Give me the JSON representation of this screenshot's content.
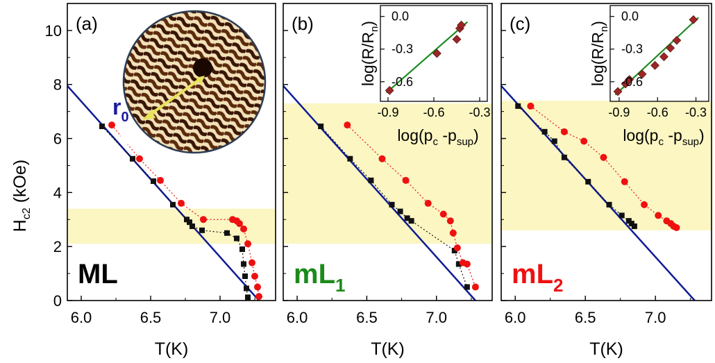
{
  "colors": {
    "axis": "#000000",
    "fit_line": "#0f1c96",
    "black_series": "#111111",
    "red_series": "#ee1111",
    "band": "#fbf6c2",
    "inset_fit": "#1c8a1c",
    "inset_points": "#9c2626",
    "label_ml": "#000000",
    "label_ml1": "#1b8a1b",
    "label_ml2": "#ee1111",
    "r0_arrow": "#e8e25a",
    "r0_text": "#1a1aa0"
  },
  "shared": {
    "ylabel_main": "H",
    "ylabel_sub": "c2",
    "ylabel_unit": " (kOe)",
    "xlabel": "T(K)",
    "yticks": [
      "0",
      "2",
      "4",
      "6",
      "8",
      "10"
    ]
  },
  "r0_label": {
    "main": "r",
    "sub": "0"
  },
  "chart_data": [
    {
      "type": "line",
      "panel_label": "(a)",
      "sample_label": {
        "main": "ML",
        "sub": ""
      },
      "xlim": [
        5.9,
        7.4
      ],
      "ylim": [
        0,
        11
      ],
      "xticks": [
        {
          "v": 6.0,
          "t": "6.0"
        },
        {
          "v": 6.5,
          "t": "6.5"
        },
        {
          "v": 7.0,
          "t": "7.0"
        }
      ],
      "band": [
        2.1,
        3.4
      ],
      "fit_line": [
        [
          5.9,
          7.95
        ],
        [
          7.28,
          0
        ]
      ],
      "series": [
        {
          "values_x": [
            6.15,
            6.37,
            6.52,
            6.66,
            6.76,
            6.78,
            6.8,
            6.87,
            7.05,
            7.12,
            7.16,
            7.17,
            7.18,
            7.19,
            7.2
          ],
          "values_y": [
            6.45,
            5.25,
            4.42,
            3.55,
            3.0,
            2.9,
            2.75,
            2.6,
            2.5,
            2.3,
            1.9,
            1.35,
            0.9,
            0.45,
            0.12
          ]
        },
        {
          "values_x": [
            6.22,
            6.42,
            6.57,
            6.72,
            6.88,
            7.09,
            7.12,
            7.14,
            7.17,
            7.2,
            7.23,
            7.25,
            7.27,
            7.28
          ],
          "values_y": [
            6.5,
            5.25,
            4.45,
            3.6,
            3.0,
            3.0,
            2.95,
            2.85,
            2.65,
            2.1,
            1.4,
            0.9,
            0.5,
            0.15
          ]
        }
      ],
      "inset": null
    },
    {
      "type": "line",
      "panel_label": "(b)",
      "sample_label": {
        "main": "mL",
        "sub": "1"
      },
      "xlim": [
        5.9,
        7.4
      ],
      "ylim": [
        0,
        11
      ],
      "xticks": [
        {
          "v": 6.0,
          "t": "6.0"
        },
        {
          "v": 6.5,
          "t": "6.5"
        },
        {
          "v": 7.0,
          "t": "7.0"
        }
      ],
      "band": [
        2.1,
        7.3
      ],
      "fit_line": [
        [
          5.9,
          7.95
        ],
        [
          7.28,
          0
        ]
      ],
      "series": [
        {
          "values_x": [
            6.17,
            6.38,
            6.53,
            6.68,
            6.74,
            6.79,
            6.82,
            7.13,
            7.16,
            7.22
          ],
          "values_y": [
            6.45,
            5.25,
            4.45,
            3.55,
            3.3,
            3.05,
            2.95,
            1.85,
            1.35,
            0.5
          ]
        },
        {
          "values_x": [
            6.36,
            6.61,
            6.78,
            6.94,
            7.05,
            7.1,
            7.12,
            7.15,
            7.19,
            7.22,
            7.28
          ],
          "values_y": [
            6.5,
            5.25,
            4.45,
            3.6,
            3.2,
            2.95,
            2.5,
            1.95,
            1.4,
            1.35,
            0.5
          ]
        }
      ],
      "inset": {
        "xlim": [
          -0.95,
          -0.25
        ],
        "ylim": [
          -0.78,
          0.1
        ],
        "xticks": [
          {
            "v": -0.9,
            "t": "-0.9"
          },
          {
            "v": -0.6,
            "t": "-0.6"
          },
          {
            "v": -0.3,
            "t": "-0.3"
          }
        ],
        "yticks": [
          {
            "v": 0.0,
            "t": "0.0"
          },
          {
            "v": -0.3,
            "t": "-0.3"
          },
          {
            "v": -0.6,
            "t": "-0.6"
          }
        ],
        "points_x": [
          -0.89,
          -0.58,
          -0.45,
          -0.43,
          -0.42
        ],
        "points_y": [
          -0.68,
          -0.34,
          -0.21,
          -0.11,
          -0.08
        ],
        "fit": [
          [
            -0.91,
            -0.7
          ],
          [
            -0.38,
            -0.05
          ]
        ],
        "ylabel": "log(R/R",
        "ylabel_sub": "n",
        "ylabel_close": ")",
        "xlabel": "log(p",
        "xlabel_sub1": "c",
        "xlabel_mid": " -p",
        "xlabel_sub2": "sup",
        "xlabel_close": ")"
      }
    },
    {
      "type": "line",
      "panel_label": "(c)",
      "sample_label": {
        "main": "mL",
        "sub": "2"
      },
      "xlim": [
        5.9,
        7.4
      ],
      "ylim": [
        0,
        11
      ],
      "xticks": [
        {
          "v": 6.0,
          "t": "6.0"
        },
        {
          "v": 6.5,
          "t": "6.5"
        },
        {
          "v": 7.0,
          "t": "7.0"
        }
      ],
      "band": [
        2.6,
        7.4
      ],
      "fit_line": [
        [
          5.9,
          7.95
        ],
        [
          7.28,
          0
        ]
      ],
      "series": [
        {
          "values_x": [
            6.02,
            6.21,
            6.28,
            6.35,
            6.52,
            6.67,
            6.76,
            6.81,
            6.83,
            6.85
          ],
          "values_y": [
            7.2,
            6.25,
            5.9,
            5.3,
            4.4,
            3.55,
            3.15,
            2.95,
            2.85,
            2.75
          ]
        },
        {
          "values_x": [
            6.11,
            6.35,
            6.49,
            6.63,
            6.78,
            6.92,
            7.02,
            7.08,
            7.11,
            7.13,
            7.15
          ],
          "values_y": [
            7.2,
            6.25,
            5.9,
            5.3,
            4.4,
            3.55,
            3.15,
            2.95,
            2.85,
            2.75,
            2.7
          ]
        }
      ],
      "inset": {
        "xlim": [
          -0.97,
          -0.2
        ],
        "ylim": [
          -0.78,
          0.1
        ],
        "xticks": [
          {
            "v": -0.9,
            "t": "-0.9"
          },
          {
            "v": -0.6,
            "t": "-0.6"
          },
          {
            "v": -0.3,
            "t": "-0.3"
          }
        ],
        "yticks": [
          {
            "v": 0.0,
            "t": "0.0"
          },
          {
            "v": -0.3,
            "t": "-0.3"
          },
          {
            "v": -0.6,
            "t": "-0.6"
          }
        ],
        "points_x": [
          -0.91,
          -0.85,
          -0.82,
          -0.72,
          -0.62,
          -0.55,
          -0.5,
          -0.45,
          -0.32
        ],
        "points_y": [
          -0.69,
          -0.62,
          -0.58,
          -0.53,
          -0.45,
          -0.37,
          -0.29,
          -0.22,
          -0.03
        ],
        "fit": [
          [
            -0.93,
            -0.72
          ],
          [
            -0.28,
            -0.01
          ]
        ],
        "ylabel": "log(R/R",
        "ylabel_sub": "n",
        "ylabel_close": ")",
        "xlabel": "log(p",
        "xlabel_sub1": "c",
        "xlabel_mid": " -p",
        "xlabel_sub2": "sup",
        "xlabel_close": ")"
      }
    }
  ]
}
